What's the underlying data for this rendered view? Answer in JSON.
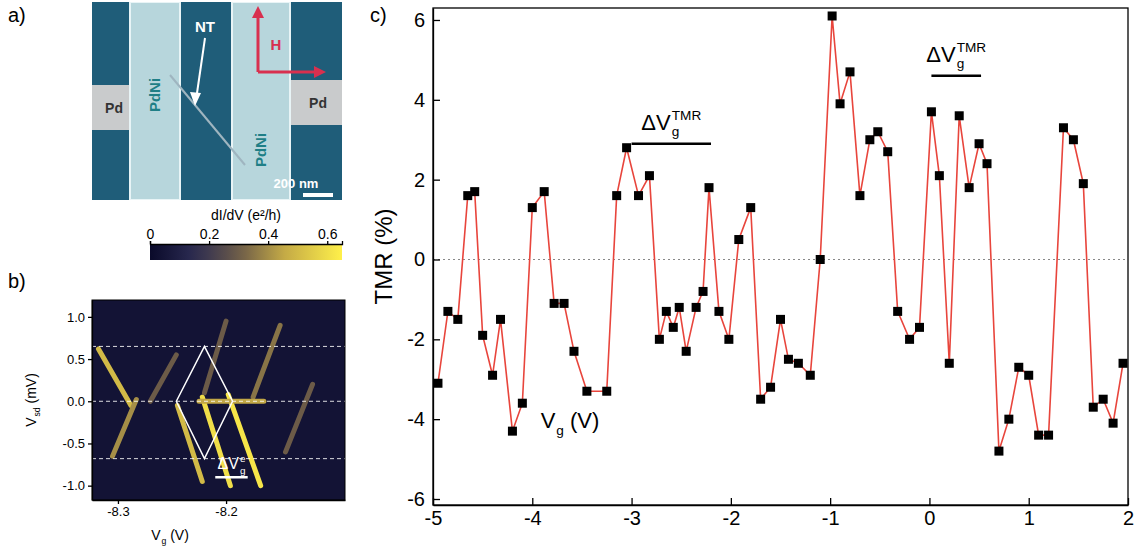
{
  "chart_data": [
    {
      "type": "image",
      "panel": "a)",
      "labels": [
        "NT",
        "PdNi",
        "PdNi",
        "Pd",
        "Pd",
        "H",
        "200 nm"
      ]
    },
    {
      "type": "heatmap",
      "panel": "b)",
      "color_label": "dI/dV (e²/h)",
      "color_range": [
        0,
        0.65
      ],
      "color_ticks": [
        0,
        0.2,
        0.4,
        0.6
      ],
      "x_label": {
        "base": "V",
        "sub": "g",
        "after": " (V)"
      },
      "y_label": {
        "base": "V",
        "sub": "sd",
        "after": " (mV)"
      },
      "xlim": [
        -8.324,
        -8.09
      ],
      "xticks": [
        -8.3,
        -8.2
      ],
      "ylim": [
        -1.17,
        1.2
      ],
      "yticks": [
        {
          "value": -1,
          "label": "-1.0"
        },
        -0.5,
        {
          "value": 0,
          "label": "0.0"
        },
        0.5,
        {
          "value": 1,
          "label": "1.0"
        }
      ],
      "background": 0.04,
      "ridges": [
        {
          "x": [
            -8.318,
            -8.288
          ],
          "y": [
            0.62,
            -0.05
          ],
          "value": 0.5
        },
        {
          "x": [
            -8.305,
            -8.283
          ],
          "y": [
            -0.65,
            0.02
          ],
          "value": 0.4
        },
        {
          "x": [
            -8.27,
            -8.246
          ],
          "y": [
            0.0,
            0.55
          ],
          "value": 0.3
        },
        {
          "x": [
            -8.245,
            -8.222
          ],
          "y": [
            -0.05,
            -0.95
          ],
          "value": 0.5
        },
        {
          "x": [
            -8.222,
            -8.196
          ],
          "y": [
            0.05,
            -1.0
          ],
          "value": 0.6
        },
        {
          "x": [
            -8.198,
            -8.168
          ],
          "y": [
            0.08,
            -1.0
          ],
          "value": 0.62
        },
        {
          "x": [
            -8.22,
            -8.2
          ],
          "y": [
            0.1,
            0.95
          ],
          "value": 0.3
        },
        {
          "x": [
            -8.175,
            -8.15
          ],
          "y": [
            0.05,
            0.9
          ],
          "value": 0.35
        },
        {
          "x": [
            -8.145,
            -8.12
          ],
          "y": [
            -0.6,
            0.2
          ],
          "value": 0.3
        },
        {
          "x": [
            -8.225,
            -8.165
          ],
          "y": [
            0.0,
            0.0
          ],
          "value": 0.45
        }
      ],
      "dashed_lines": [
        0.65,
        0,
        -0.68
      ],
      "diamond": {
        "x": [
          -8.246,
          -8.22,
          -8.194,
          -8.22
        ],
        "y": [
          0,
          0.65,
          0,
          -0.68
        ]
      },
      "annotation": {
        "text": {
          "base": "ΔV",
          "sub": "g",
          "sup": "e"
        },
        "x": [
          -8.21,
          -8.18
        ],
        "y": -0.9
      }
    },
    {
      "type": "line",
      "panel": "c)",
      "x_label": {
        "base": "V",
        "sub": "g",
        "after": " (V)"
      },
      "y_label": "TMR (%)",
      "xlim": [
        -5,
        2
      ],
      "xticks": [
        -5,
        -4,
        -3,
        -2,
        -1,
        0,
        1,
        2
      ],
      "ylim": [
        -6.15,
        6.3
      ],
      "yticks": [
        -6,
        -4,
        -2,
        0,
        2,
        4,
        6
      ],
      "color": "#e8453c",
      "marker": "square",
      "line_style": "solid",
      "x": [
        -4.95,
        -4.85,
        -4.75,
        -4.65,
        -4.58,
        -4.5,
        -4.4,
        -4.32,
        -4.2,
        -4.1,
        -4.0,
        -3.88,
        -3.78,
        -3.68,
        -3.58,
        -3.45,
        -3.25,
        -3.15,
        -3.05,
        -2.93,
        -2.82,
        -2.72,
        -2.65,
        -2.58,
        -2.52,
        -2.45,
        -2.35,
        -2.28,
        -2.22,
        -2.12,
        -2.02,
        -1.92,
        -1.8,
        -1.7,
        -1.6,
        -1.5,
        -1.42,
        -1.32,
        -1.2,
        -1.1,
        -0.98,
        -0.9,
        -0.8,
        -0.7,
        -0.6,
        -0.52,
        -0.42,
        -0.32,
        -0.2,
        -0.1,
        0.02,
        0.1,
        0.2,
        0.3,
        0.4,
        0.5,
        0.58,
        0.7,
        0.8,
        0.9,
        1.0,
        1.1,
        1.2,
        1.35,
        1.45,
        1.55,
        1.65,
        1.75,
        1.85,
        1.95
      ],
      "values": [
        -3.1,
        -1.3,
        -1.5,
        1.6,
        1.7,
        -1.9,
        -2.9,
        -1.5,
        -4.3,
        -3.6,
        1.3,
        1.7,
        -1.1,
        -1.1,
        -2.3,
        -3.3,
        -3.3,
        1.6,
        2.8,
        1.6,
        2.1,
        -2.0,
        -1.3,
        -1.7,
        -1.2,
        -2.3,
        -1.2,
        -0.8,
        1.8,
        -1.3,
        -2.0,
        0.5,
        1.3,
        -3.5,
        -3.2,
        -1.5,
        -2.5,
        -2.6,
        -2.9,
        0.0,
        6.1,
        3.9,
        4.7,
        1.6,
        3.0,
        3.2,
        2.7,
        -1.3,
        -2.0,
        -1.7,
        3.7,
        2.1,
        -2.6,
        3.6,
        1.8,
        2.9,
        2.4,
        -4.8,
        -4.0,
        -2.7,
        -2.9,
        -4.4,
        -4.4,
        3.3,
        3.0,
        1.9,
        -3.7,
        -3.5,
        -4.1,
        -2.6
      ],
      "reference_lines": [
        0
      ],
      "annotations": [
        {
          "text": {
            "base": "ΔV",
            "sub": "g",
            "sup": "TMR"
          },
          "x": [
            -3.0,
            -2.2
          ],
          "y": 2.9
        },
        {
          "text": {
            "base": "ΔV",
            "sub": "g",
            "sup": "TMR"
          },
          "x": [
            0.02,
            0.52
          ],
          "y": 4.6
        }
      ]
    }
  ]
}
